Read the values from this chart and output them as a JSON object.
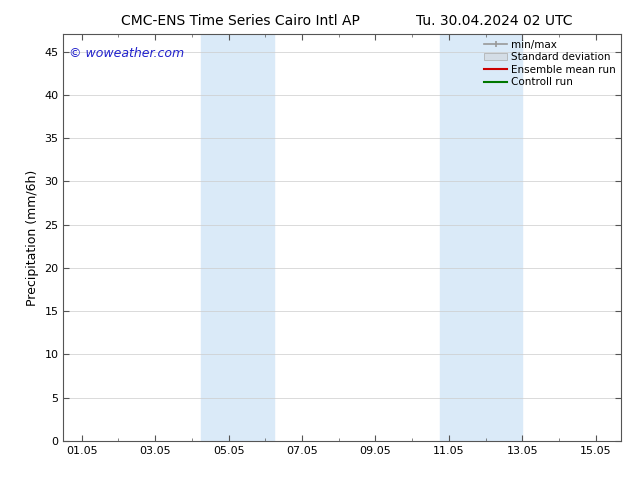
{
  "title_left": "CMC-ENS Time Series Cairo Intl AP",
  "title_right": "Tu. 30.04.2024 02 UTC",
  "ylabel": "Precipitation (mm/6h)",
  "watermark": "© woweather.com",
  "xlim_start": 0.5,
  "xlim_end": 15.7,
  "ylim_bottom": 0,
  "ylim_top": 47,
  "yticks": [
    0,
    5,
    10,
    15,
    20,
    25,
    30,
    35,
    40,
    45
  ],
  "xtick_labels": [
    "01.05",
    "03.05",
    "05.05",
    "07.05",
    "09.05",
    "11.05",
    "13.05",
    "15.05"
  ],
  "xtick_positions": [
    1,
    3,
    5,
    7,
    9,
    11,
    13,
    15
  ],
  "shaded_regions": [
    {
      "x_start": 4.25,
      "x_end": 6.25,
      "color": "#daeaf8"
    },
    {
      "x_start": 10.75,
      "x_end": 13.0,
      "color": "#daeaf8"
    }
  ],
  "legend_entries": [
    {
      "label": "min/max",
      "color": "#aaaaaa"
    },
    {
      "label": "Standard deviation",
      "color": "#d0dde8"
    },
    {
      "label": "Ensemble mean run",
      "color": "#cc0000"
    },
    {
      "label": "Controll run",
      "color": "#007700"
    }
  ],
  "bg_color": "#ffffff",
  "plot_bg_color": "#ffffff",
  "title_fontsize": 10,
  "watermark_color": "#2222cc",
  "watermark_fontsize": 9,
  "grid_color": "#cccccc",
  "tick_label_fontsize": 8,
  "ylabel_fontsize": 9,
  "legend_fontsize": 7.5
}
